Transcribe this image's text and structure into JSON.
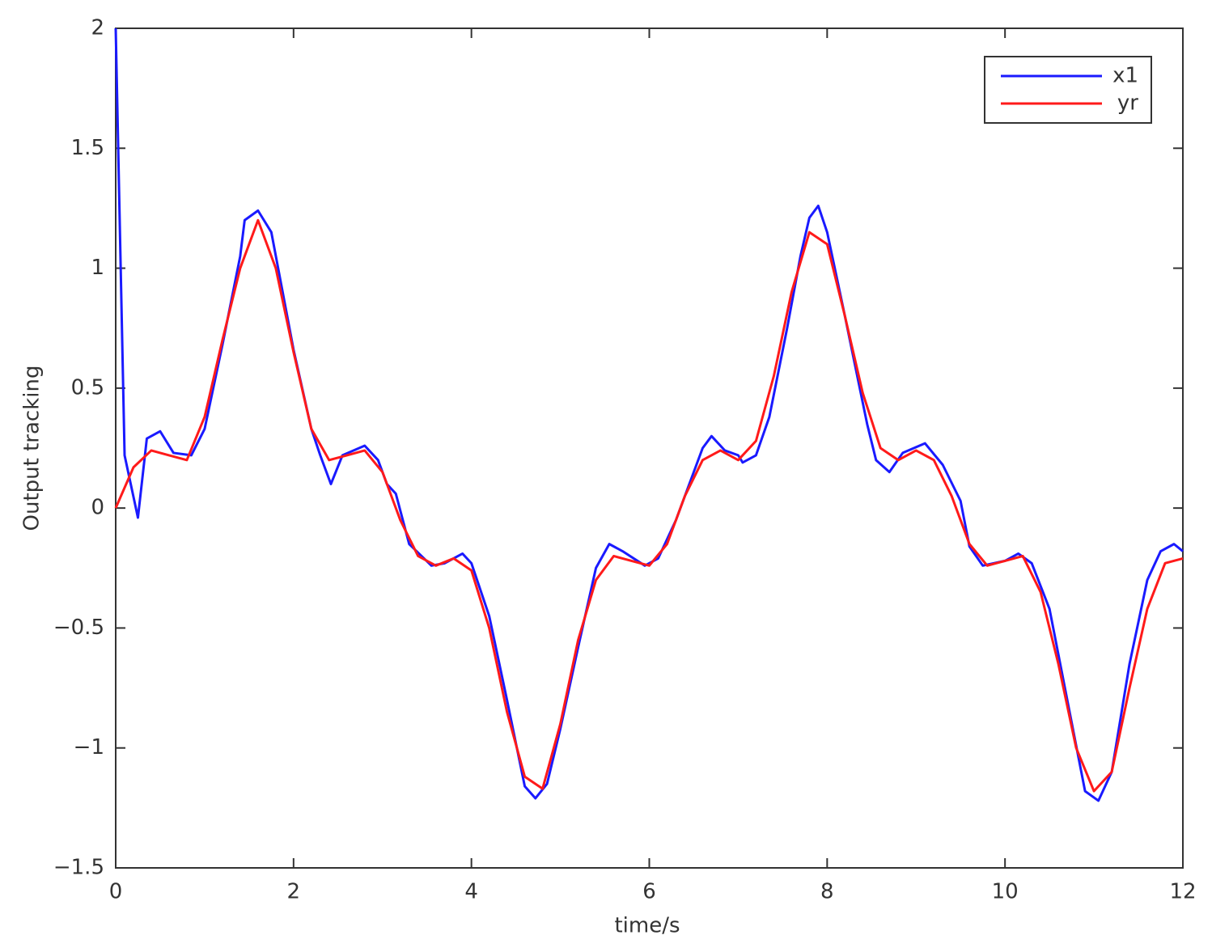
{
  "chart_data": {
    "type": "line",
    "xlabel": "time/s",
    "ylabel": "Output tracking",
    "xlim": [
      0,
      12
    ],
    "xticks": [
      0,
      2,
      4,
      6,
      8,
      10,
      12
    ],
    "ylim": [
      -1.5,
      2
    ],
    "yticks": [
      {
        "value": -1.5,
        "label": "−1.5"
      },
      {
        "value": -1,
        "label": "−1"
      },
      {
        "value": -0.5,
        "label": "−0.5"
      },
      0,
      0.5,
      1,
      1.5,
      2
    ],
    "legend": "upper right",
    "series": [
      {
        "name": "x1",
        "color": "#1a1aff",
        "x": [
          0,
          0.1,
          0.25,
          0.35,
          0.5,
          0.65,
          0.85,
          1.0,
          1.2,
          1.4,
          1.45,
          1.6,
          1.75,
          2.0,
          2.2,
          2.3,
          2.42,
          2.55,
          2.8,
          2.95,
          3.05,
          3.15,
          3.3,
          3.55,
          3.7,
          3.9,
          4.0,
          4.2,
          4.4,
          4.6,
          4.72,
          4.85,
          5.0,
          5.2,
          5.4,
          5.55,
          5.7,
          5.95,
          6.1,
          6.3,
          6.5,
          6.6,
          6.7,
          6.85,
          7.0,
          7.05,
          7.2,
          7.35,
          7.55,
          7.7,
          7.8,
          7.9,
          8.0,
          8.2,
          8.45,
          8.55,
          8.7,
          8.85,
          9.1,
          9.3,
          9.5,
          9.6,
          9.75,
          10.0,
          10.15,
          10.3,
          10.5,
          10.7,
          10.9,
          11.05,
          11.2,
          11.4,
          11.6,
          11.75,
          11.9,
          12.0
        ],
        "values": [
          2,
          0.22,
          -0.04,
          0.29,
          0.32,
          0.23,
          0.22,
          0.33,
          0.68,
          1.05,
          1.2,
          1.24,
          1.15,
          0.66,
          0.33,
          0.22,
          0.1,
          0.22,
          0.26,
          0.2,
          0.1,
          0.06,
          -0.15,
          -0.24,
          -0.23,
          -0.19,
          -0.23,
          -0.45,
          -0.8,
          -1.16,
          -1.21,
          -1.15,
          -0.92,
          -0.58,
          -0.25,
          -0.15,
          -0.18,
          -0.24,
          -0.21,
          -0.05,
          0.15,
          0.25,
          0.3,
          0.24,
          0.22,
          0.19,
          0.22,
          0.38,
          0.75,
          1.05,
          1.21,
          1.26,
          1.15,
          0.8,
          0.35,
          0.2,
          0.15,
          0.23,
          0.27,
          0.18,
          0.03,
          -0.16,
          -0.24,
          -0.22,
          -0.19,
          -0.23,
          -0.42,
          -0.8,
          -1.18,
          -1.22,
          -1.1,
          -0.65,
          -0.3,
          -0.18,
          -0.15,
          -0.18
        ]
      },
      {
        "name": "yr",
        "color": "#ff1a1a",
        "x": [
          0,
          0.2,
          0.4,
          0.6,
          0.8,
          1.0,
          1.2,
          1.4,
          1.6,
          1.8,
          2.0,
          2.2,
          2.4,
          2.6,
          2.8,
          3.0,
          3.2,
          3.4,
          3.6,
          3.8,
          4.0,
          4.2,
          4.4,
          4.6,
          4.8,
          5.0,
          5.2,
          5.4,
          5.6,
          5.8,
          6.0,
          6.2,
          6.4,
          6.6,
          6.8,
          7.0,
          7.2,
          7.4,
          7.6,
          7.8,
          8.0,
          8.2,
          8.4,
          8.6,
          8.8,
          9.0,
          9.2,
          9.4,
          9.6,
          9.8,
          10.0,
          10.2,
          10.4,
          10.6,
          10.8,
          11.0,
          11.2,
          11.4,
          11.6,
          11.8,
          12.0
        ],
        "values": [
          0,
          0.17,
          0.24,
          0.22,
          0.2,
          0.38,
          0.7,
          1.0,
          1.2,
          1.0,
          0.65,
          0.33,
          0.2,
          0.22,
          0.24,
          0.15,
          -0.05,
          -0.2,
          -0.24,
          -0.21,
          -0.26,
          -0.5,
          -0.85,
          -1.12,
          -1.17,
          -0.9,
          -0.55,
          -0.3,
          -0.2,
          -0.22,
          -0.24,
          -0.15,
          0.05,
          0.2,
          0.24,
          0.2,
          0.28,
          0.55,
          0.9,
          1.15,
          1.1,
          0.8,
          0.48,
          0.25,
          0.2,
          0.24,
          0.2,
          0.05,
          -0.15,
          -0.24,
          -0.22,
          -0.2,
          -0.35,
          -0.65,
          -1.0,
          -1.18,
          -1.1,
          -0.75,
          -0.42,
          -0.23,
          -0.21
        ]
      }
    ]
  }
}
